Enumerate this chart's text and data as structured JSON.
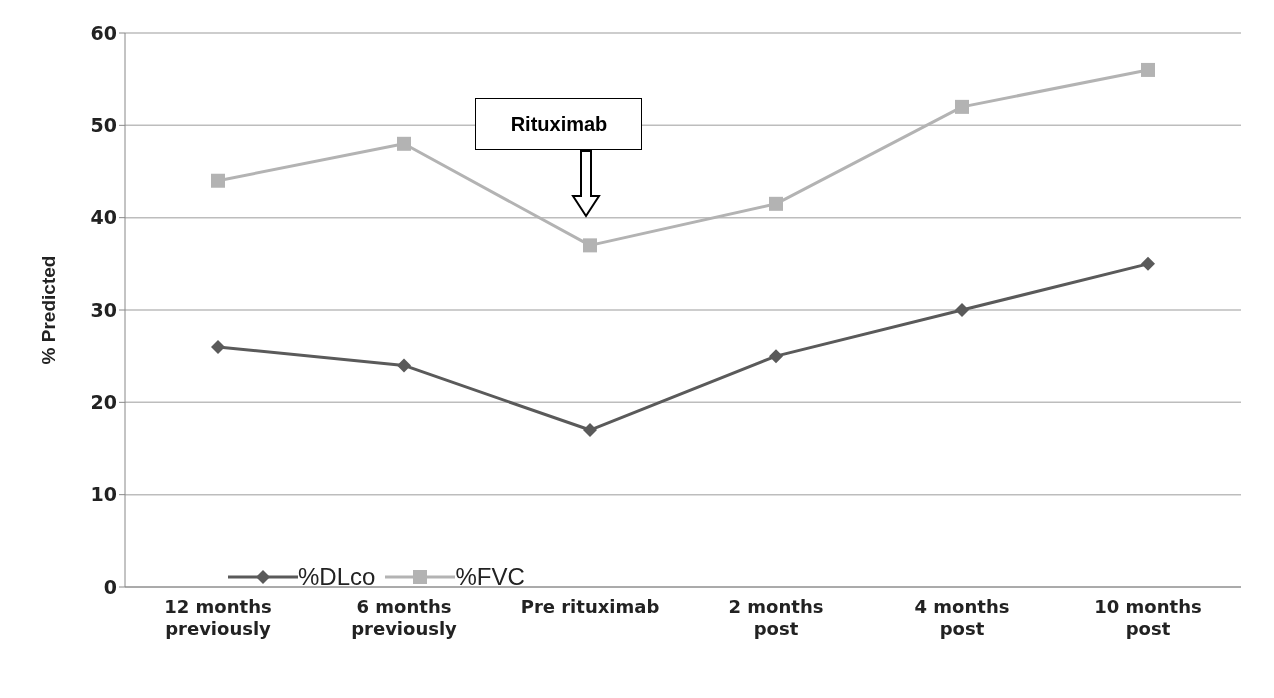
{
  "chart_data": {
    "type": "line",
    "ylabel": "% Predicted",
    "categories": [
      "12 months previously",
      "6 months previously",
      "Pre rituximab",
      "2 months post",
      "4 months post",
      "10 months post"
    ],
    "series": [
      {
        "name": "%DLco",
        "color": "#5a5a5a",
        "marker": "diamond",
        "values": [
          26,
          24,
          17,
          25,
          30,
          35
        ]
      },
      {
        "name": "%FVC",
        "color": "#b3b3b3",
        "marker": "square",
        "values": [
          44,
          48,
          37,
          41.5,
          52,
          56
        ]
      }
    ],
    "ylim": [
      0,
      60
    ],
    "yticks": [
      0,
      10,
      20,
      30,
      40,
      50,
      60
    ],
    "grid": "y",
    "legend": "bottom left",
    "line_style": "solid",
    "annotations": [
      "Rituximab"
    ]
  }
}
